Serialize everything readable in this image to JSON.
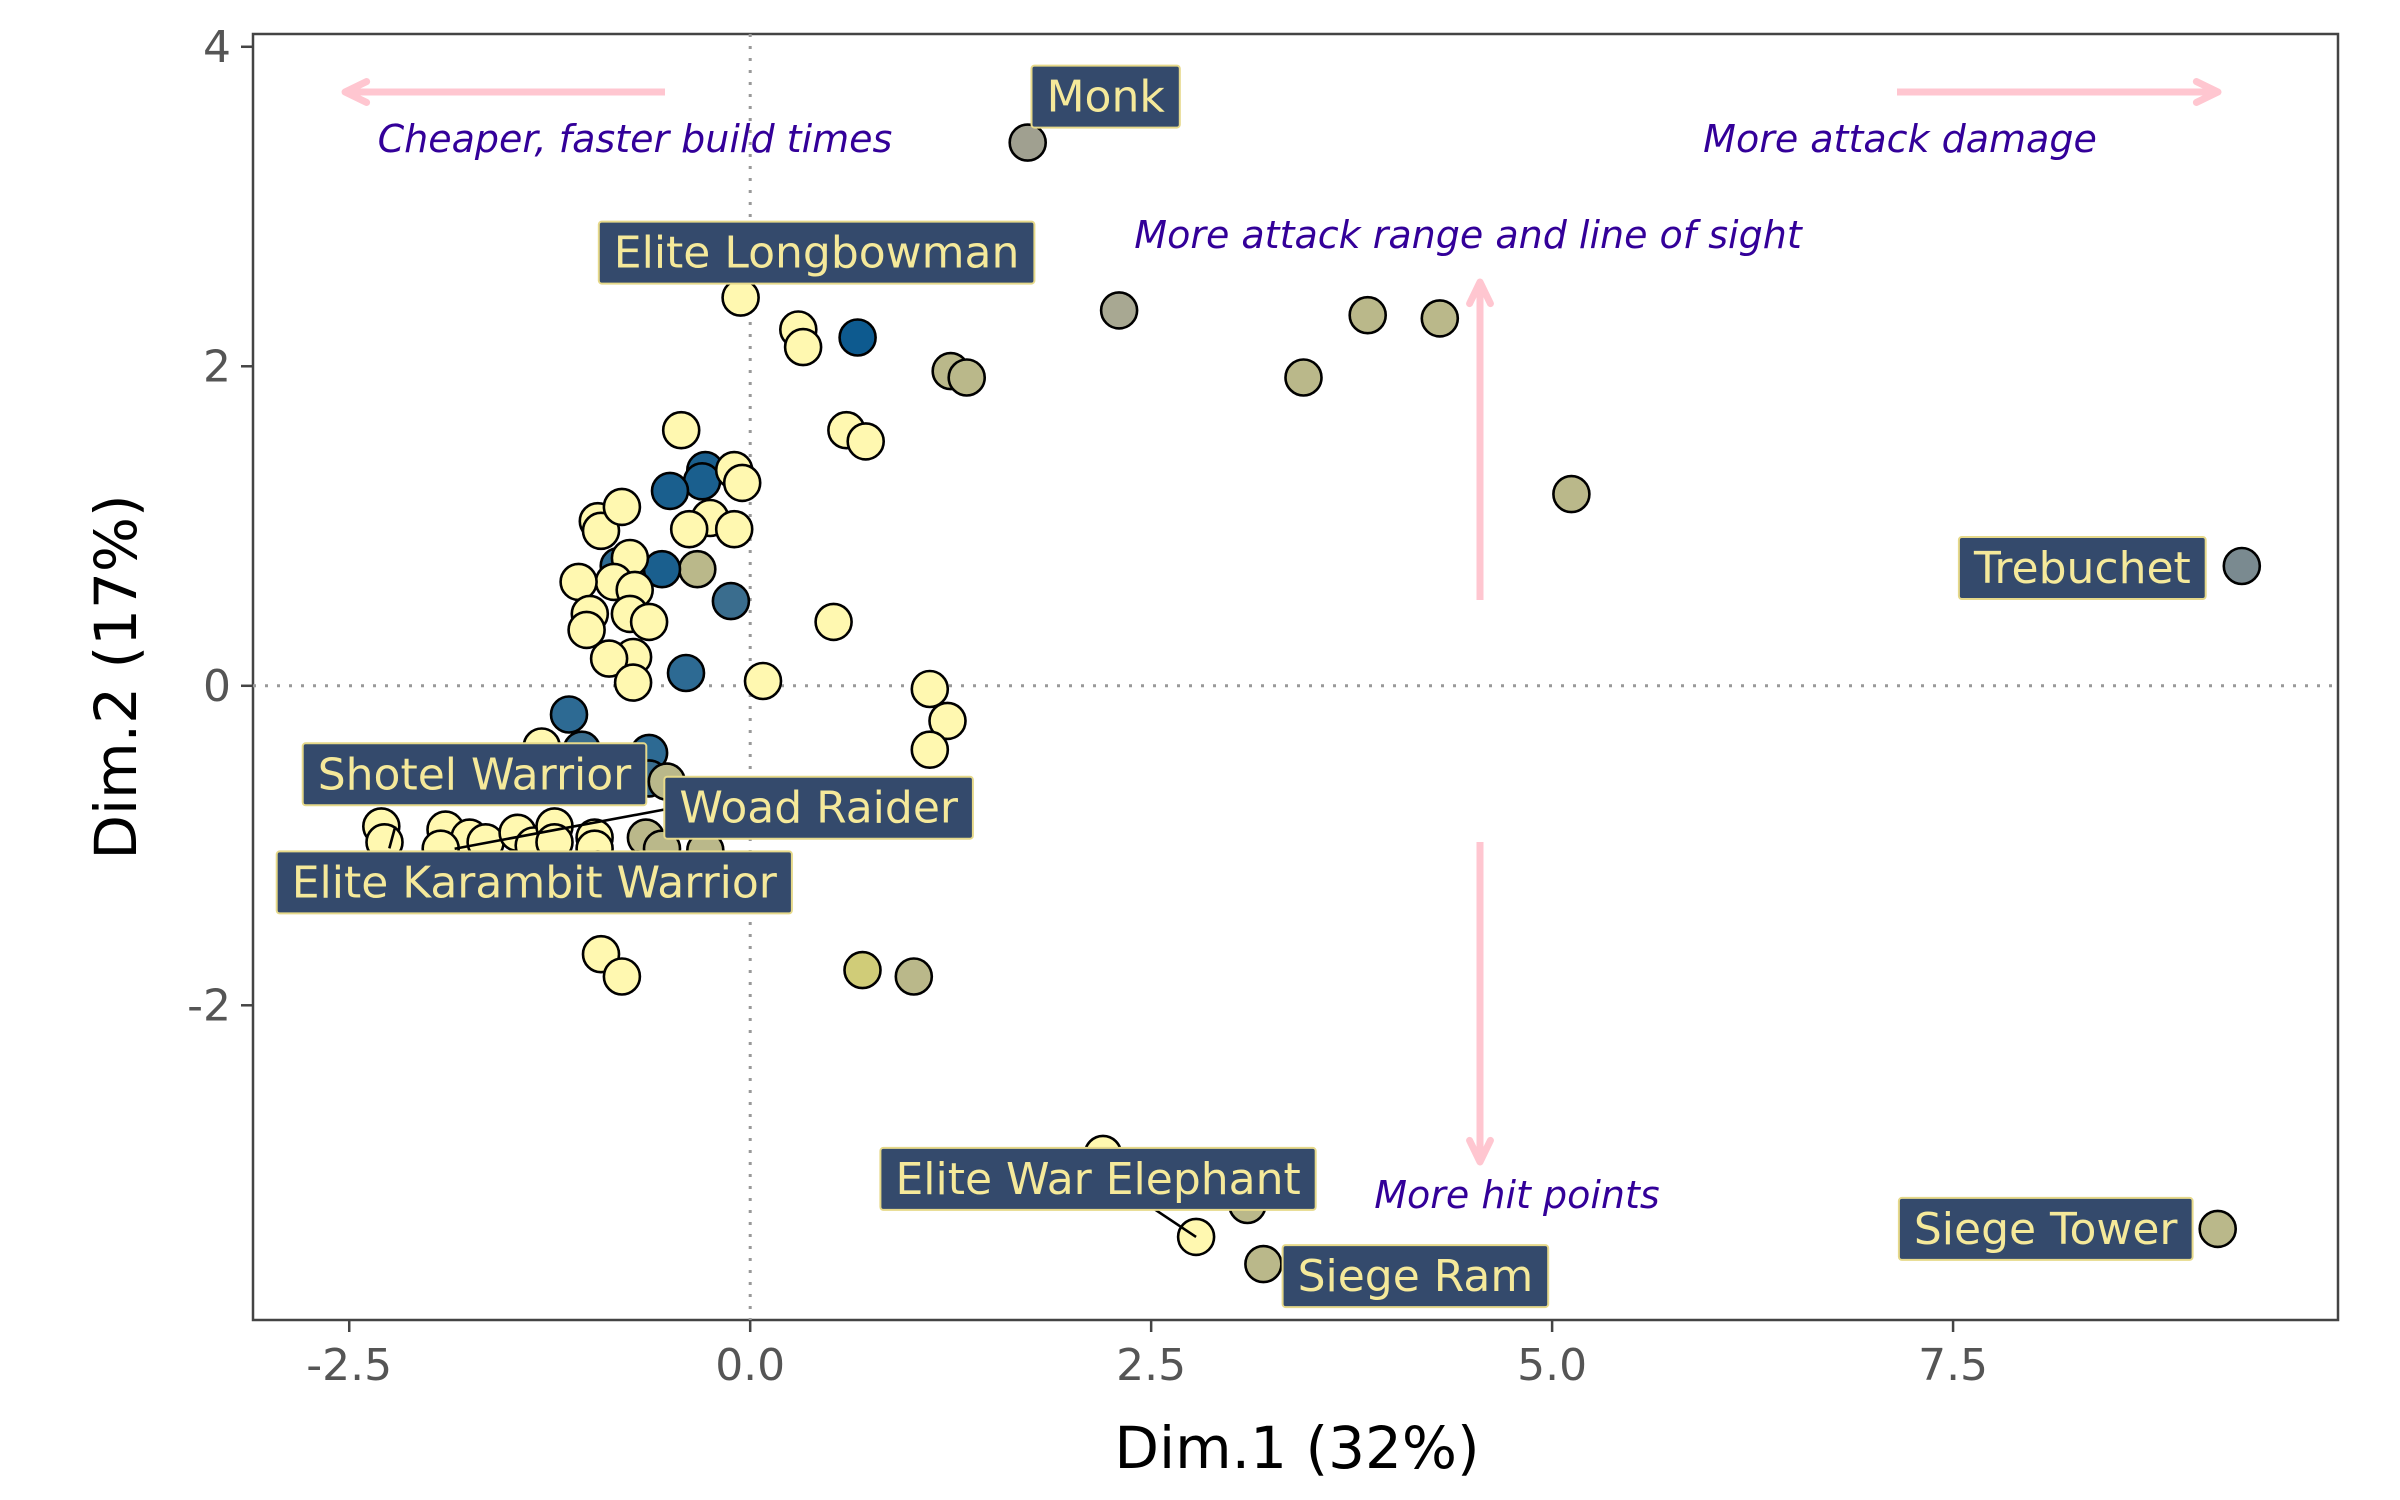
{
  "chart_data": {
    "type": "scatter",
    "xlabel": "Dim.1 (32%)",
    "ylabel": "Dim.2 (17%)",
    "xlim": [
      -3.1,
      9.9
    ],
    "ylim": [
      -3.97,
      4.08
    ],
    "xticks": [
      -2.5,
      0.0,
      2.5,
      5.0,
      7.5
    ],
    "xtick_labels": [
      "-2.5",
      "0.0",
      "2.5",
      "5.0",
      "7.5"
    ],
    "yticks": [
      -2,
      0,
      2,
      4
    ],
    "ytick_labels": [
      "-2",
      "0",
      "2",
      "4"
    ],
    "reference_lines": {
      "x": 0,
      "y": 0,
      "style": "dotted"
    },
    "points": [
      {
        "x": 1.73,
        "y": 3.4,
        "color": "#a0a090"
      },
      {
        "x": 2.3,
        "y": 2.35,
        "color": "#a8a892"
      },
      {
        "x": 3.85,
        "y": 2.32,
        "color": "#bab88a"
      },
      {
        "x": 4.3,
        "y": 2.3,
        "color": "#bab88a"
      },
      {
        "x": 3.45,
        "y": 1.93,
        "color": "#bab88a"
      },
      {
        "x": 5.12,
        "y": 1.2,
        "color": "#bab88a"
      },
      {
        "x": 9.3,
        "y": 0.75,
        "color": "#7a8a90"
      },
      {
        "x": 9.15,
        "y": -3.4,
        "color": "#bab88a"
      },
      {
        "x": 1.25,
        "y": 1.97,
        "color": "#bab88a"
      },
      {
        "x": 1.35,
        "y": 1.93,
        "color": "#bab88a"
      },
      {
        "x": 0.67,
        "y": 2.18,
        "color": "#0d5a8f"
      },
      {
        "x": -0.06,
        "y": 2.43,
        "color": "#fff8b0"
      },
      {
        "x": 0.3,
        "y": 2.23,
        "color": "#fff8b0"
      },
      {
        "x": 0.33,
        "y": 2.12,
        "color": "#fff8b0"
      },
      {
        "x": 0.6,
        "y": 1.6,
        "color": "#fff8b0"
      },
      {
        "x": 0.72,
        "y": 1.53,
        "color": "#fff8b0"
      },
      {
        "x": -0.43,
        "y": 1.6,
        "color": "#fff8b0"
      },
      {
        "x": -0.28,
        "y": 1.35,
        "color": "#1a5f8e"
      },
      {
        "x": -0.3,
        "y": 1.28,
        "color": "#1a5f8e"
      },
      {
        "x": -0.5,
        "y": 1.22,
        "color": "#1a5f8e"
      },
      {
        "x": -0.1,
        "y": 1.35,
        "color": "#fff8b0"
      },
      {
        "x": -0.05,
        "y": 1.27,
        "color": "#fff8b0"
      },
      {
        "x": -0.25,
        "y": 1.05,
        "color": "#fff8b0"
      },
      {
        "x": -0.1,
        "y": 0.98,
        "color": "#fff8b0"
      },
      {
        "x": -0.38,
        "y": 0.98,
        "color": "#fff8b0"
      },
      {
        "x": -0.95,
        "y": 1.03,
        "color": "#fff8b0"
      },
      {
        "x": -0.93,
        "y": 0.97,
        "color": "#fff8b0"
      },
      {
        "x": -0.8,
        "y": 1.12,
        "color": "#fff8b0"
      },
      {
        "x": -0.33,
        "y": 0.73,
        "color": "#bab88a"
      },
      {
        "x": -0.82,
        "y": 0.75,
        "color": "#2d6a93"
      },
      {
        "x": -0.55,
        "y": 0.73,
        "color": "#1a5f8e"
      },
      {
        "x": -0.75,
        "y": 0.8,
        "color": "#fff8b0"
      },
      {
        "x": -0.85,
        "y": 0.65,
        "color": "#fff8b0"
      },
      {
        "x": -1.07,
        "y": 0.65,
        "color": "#fff8b0"
      },
      {
        "x": -0.72,
        "y": 0.6,
        "color": "#fff8b0"
      },
      {
        "x": -0.12,
        "y": 0.53,
        "color": "#3a6d8e"
      },
      {
        "x": 0.52,
        "y": 0.4,
        "color": "#fff8b0"
      },
      {
        "x": -1.0,
        "y": 0.45,
        "color": "#fff8b0"
      },
      {
        "x": -0.75,
        "y": 0.45,
        "color": "#fff8b0"
      },
      {
        "x": -0.63,
        "y": 0.4,
        "color": "#fff8b0"
      },
      {
        "x": -1.02,
        "y": 0.35,
        "color": "#fff8b0"
      },
      {
        "x": -0.73,
        "y": 0.18,
        "color": "#fff8b0"
      },
      {
        "x": -0.88,
        "y": 0.17,
        "color": "#fff8b0"
      },
      {
        "x": -0.4,
        "y": 0.08,
        "color": "#2d6a93"
      },
      {
        "x": -0.73,
        "y": 0.02,
        "color": "#fff8b0"
      },
      {
        "x": 0.08,
        "y": 0.03,
        "color": "#fff8b0"
      },
      {
        "x": 1.12,
        "y": -0.02,
        "color": "#fff8b0"
      },
      {
        "x": 1.23,
        "y": -0.22,
        "color": "#fff8b0"
      },
      {
        "x": 1.12,
        "y": -0.4,
        "color": "#fff8b0"
      },
      {
        "x": -1.13,
        "y": -0.18,
        "color": "#2d6a93"
      },
      {
        "x": -0.63,
        "y": -0.42,
        "color": "#2d6a93"
      },
      {
        "x": -1.05,
        "y": -0.4,
        "color": "#3a6d8e"
      },
      {
        "x": -1.3,
        "y": -0.38,
        "color": "#fff8b0"
      },
      {
        "x": -0.63,
        "y": -0.58,
        "color": "#3a6d8e"
      },
      {
        "x": -0.52,
        "y": -0.6,
        "color": "#bab88a"
      },
      {
        "x": -1.5,
        "y": -0.55,
        "color": "#fff8b0"
      },
      {
        "x": -2.3,
        "y": -0.88,
        "color": "#fff8b0"
      },
      {
        "x": -2.28,
        "y": -0.98,
        "color": "#fff8b0"
      },
      {
        "x": -1.9,
        "y": -0.9,
        "color": "#fff8b0"
      },
      {
        "x": -1.75,
        "y": -0.95,
        "color": "#fff8b0"
      },
      {
        "x": -1.65,
        "y": -0.98,
        "color": "#fff8b0"
      },
      {
        "x": -1.93,
        "y": -1.02,
        "color": "#fff8b0"
      },
      {
        "x": -1.45,
        "y": -0.92,
        "color": "#fff8b0"
      },
      {
        "x": -1.35,
        "y": -1.0,
        "color": "#fff8b0"
      },
      {
        "x": -1.22,
        "y": -0.88,
        "color": "#fff8b0"
      },
      {
        "x": -1.22,
        "y": -0.98,
        "color": "#fff8b0"
      },
      {
        "x": -0.97,
        "y": -0.95,
        "color": "#fff8b0"
      },
      {
        "x": -0.97,
        "y": -1.02,
        "color": "#fff8b0"
      },
      {
        "x": -0.65,
        "y": -0.95,
        "color": "#bab88a"
      },
      {
        "x": -0.55,
        "y": -1.02,
        "color": "#bab88a"
      },
      {
        "x": -0.28,
        "y": -1.03,
        "color": "#bab88a"
      },
      {
        "x": -0.95,
        "y": -1.15,
        "color": "#fff8b0"
      },
      {
        "x": -0.7,
        "y": -1.15,
        "color": "#fff8b0"
      },
      {
        "x": -0.93,
        "y": -1.68,
        "color": "#fff8b0"
      },
      {
        "x": -0.8,
        "y": -1.82,
        "color": "#fff8b0"
      },
      {
        "x": 0.7,
        "y": -1.78,
        "color": "#d0cc78"
      },
      {
        "x": 1.02,
        "y": -1.82,
        "color": "#bab88a"
      },
      {
        "x": 2.2,
        "y": -2.93,
        "color": "#fff8b0"
      },
      {
        "x": 3.1,
        "y": -3.25,
        "color": "#bab88a"
      },
      {
        "x": 2.78,
        "y": -3.45,
        "color": "#fff8b0"
      },
      {
        "x": 3.2,
        "y": -3.62,
        "color": "#bab88a"
      }
    ],
    "point_labels": [
      {
        "text": "Monk",
        "x": 1.73,
        "y": 3.4
      },
      {
        "text": "Elite Longbowman",
        "x": -0.06,
        "y": 2.43
      },
      {
        "text": "Trebuchet",
        "x": 9.3,
        "y": 0.75
      },
      {
        "text": "Shotel Warrior",
        "x": -2.28,
        "y": -0.98
      },
      {
        "text": "Woad Raider",
        "x": -1.93,
        "y": -1.02
      },
      {
        "text": "Elite Karambit Warrior",
        "x": -2.3,
        "y": -0.88
      },
      {
        "text": "Elite War Elephant",
        "x": 2.78,
        "y": -3.45
      },
      {
        "text": "Siege Ram",
        "x": 3.2,
        "y": -3.62
      },
      {
        "text": "Siege Tower",
        "x": 9.15,
        "y": -3.4
      }
    ],
    "annotations": {
      "left": "Cheaper, faster build times",
      "right": "More attack damage",
      "up": "More attack range and line of sight",
      "down": "More hit points"
    },
    "colors": {
      "arrow": "#ffc6d0",
      "annotation_text": "#330099",
      "label_bg": "#344a6c",
      "label_text": "#f5e99a"
    }
  }
}
